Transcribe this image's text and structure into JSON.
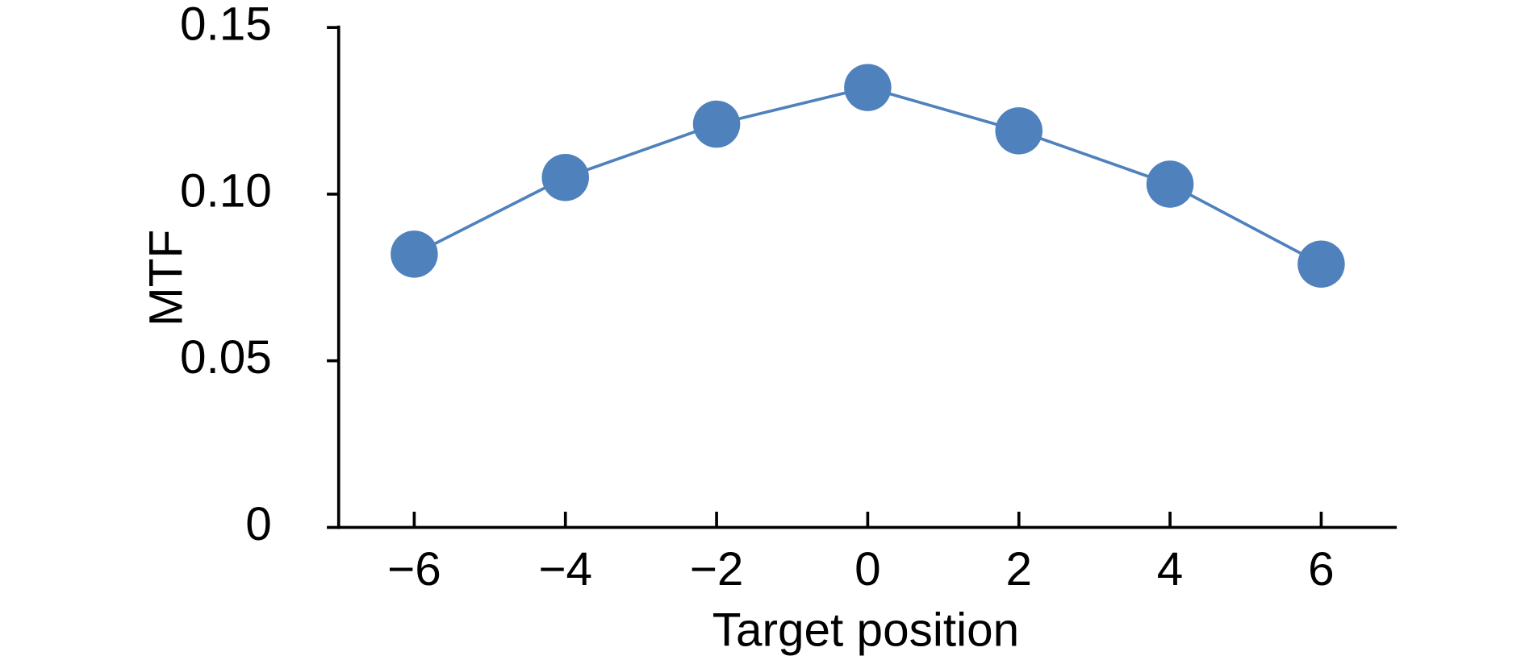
{
  "chart_data": {
    "type": "line",
    "x_label": "Target position",
    "y_label": "MTF",
    "x": [
      -6,
      -4,
      -2,
      0,
      2,
      4,
      6
    ],
    "series": [
      {
        "color": "#4f81bd",
        "values": [
          0.082,
          0.105,
          0.121,
          0.132,
          0.119,
          0.103,
          0.079
        ]
      }
    ],
    "xlim": [
      -7,
      7
    ],
    "xticks": [
      {
        "value": -6,
        "label": "−6"
      },
      {
        "value": -4,
        "label": "−4"
      },
      {
        "value": -2,
        "label": "−2"
      },
      0,
      2,
      4,
      6
    ],
    "ylim": [
      0,
      0.15
    ],
    "yticks": [
      0,
      0.05,
      {
        "value": 0.1,
        "label": "0.10"
      },
      0.15
    ],
    "grid": false
  }
}
